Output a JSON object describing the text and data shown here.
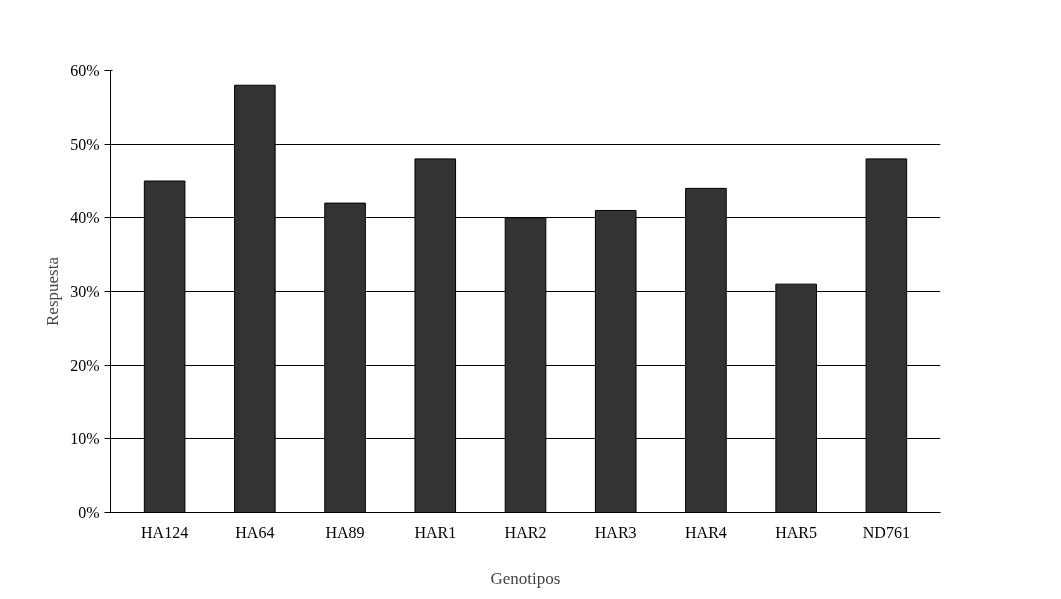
{
  "chart_data": {
    "type": "bar",
    "xlabel": "Genotipos",
    "ylabel": "Respuesta",
    "categories": [
      "HA124",
      "HA64",
      "HA89",
      "HAR1",
      "HAR2",
      "HAR3",
      "HAR4",
      "HAR5",
      "ND761"
    ],
    "values": [
      0.45,
      0.58,
      0.42,
      0.48,
      0.4,
      0.41,
      0.44,
      0.31,
      0.48
    ],
    "color": "#333333",
    "ylim": [
      0,
      0.6
    ],
    "yticks": [
      {
        "value": 0,
        "label": "0%"
      },
      {
        "value": 0.1,
        "label": "10%"
      },
      {
        "value": 0.2,
        "label": "20%"
      },
      {
        "value": 0.3,
        "label": "30%"
      },
      {
        "value": 0.4,
        "label": "40%"
      },
      {
        "value": 0.5,
        "label": "50%"
      },
      {
        "value": 0.6,
        "label": "60%"
      }
    ],
    "grid": "y"
  }
}
